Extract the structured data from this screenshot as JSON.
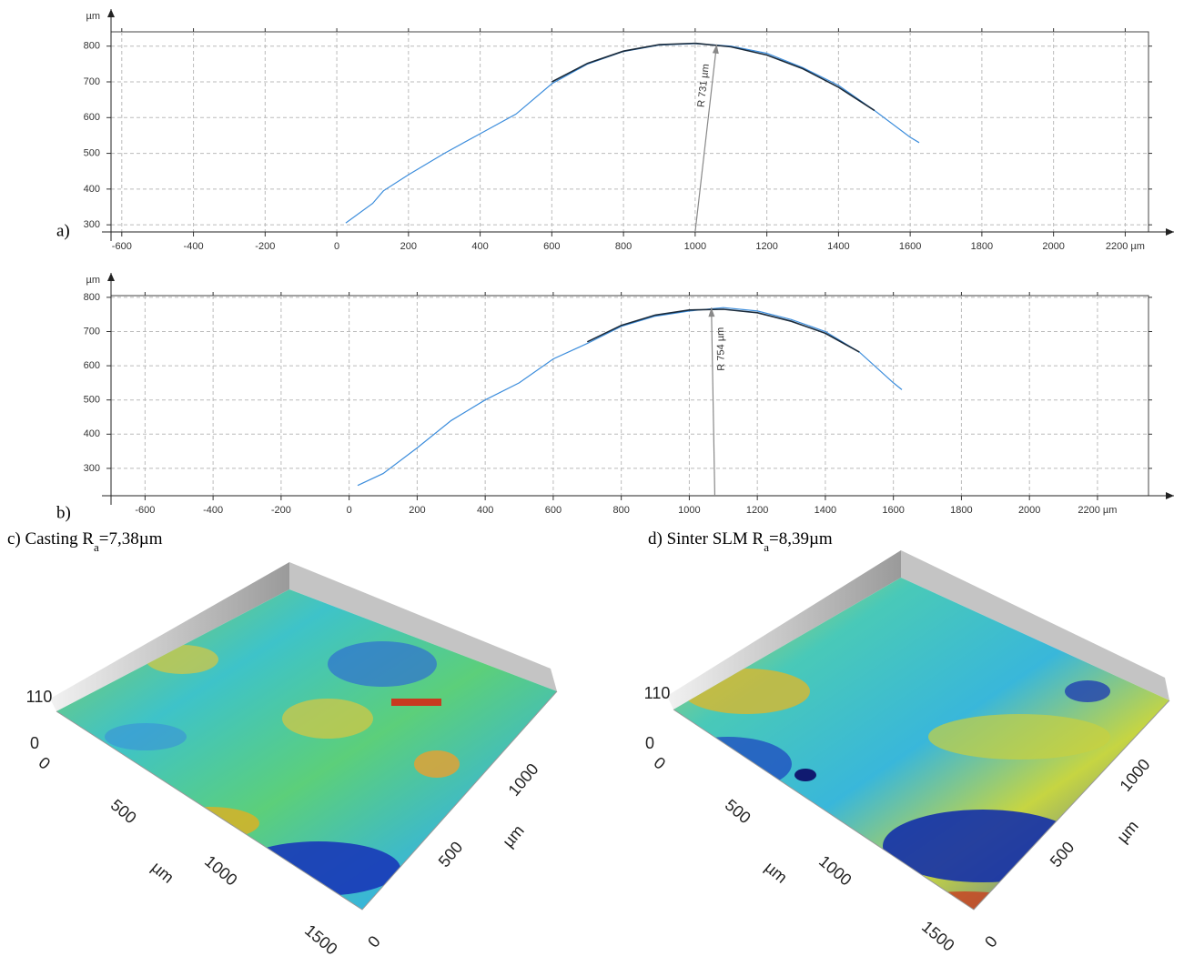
{
  "chart_data": [
    {
      "type": "line",
      "label": "a)",
      "y_label": "µm",
      "xlim": [
        -630,
        2265
      ],
      "ylim": [
        280,
        840
      ],
      "xticks": [
        -600,
        -400,
        -200,
        0,
        200,
        400,
        600,
        800,
        1000,
        1200,
        1400,
        1600,
        1800,
        2000,
        {
          "value": 2200,
          "label": "2200 µm"
        }
      ],
      "yticks": [
        300,
        400,
        500,
        600,
        700,
        800
      ],
      "grid": true,
      "x": [
        25,
        100,
        130,
        200,
        300,
        400,
        500,
        600,
        700,
        800,
        900,
        1000,
        1100,
        1200,
        1300,
        1400,
        1500,
        1600,
        1625
      ],
      "series": [
        {
          "color": "#3c8ddc",
          "values": [
            305,
            360,
            395,
            440,
            500,
            555,
            610,
            695,
            750,
            785,
            803,
            807,
            800,
            780,
            740,
            690,
            620,
            545,
            530
          ]
        },
        {
          "color": "#1a2a3a",
          "values": [
            null,
            null,
            null,
            null,
            null,
            null,
            null,
            700,
            752,
            786,
            804,
            808,
            798,
            775,
            737,
            685,
            620,
            null,
            null
          ]
        }
      ],
      "annotation": {
        "text": "R 731 µm",
        "x": [
          1000,
          1060
        ],
        "y": [
          280,
          805
        ]
      }
    },
    {
      "type": "line",
      "label": "b)",
      "y_label": "µm",
      "xlim": [
        -700,
        2350
      ],
      "ylim": [
        220,
        805
      ],
      "xticks": [
        -600,
        -400,
        -200,
        0,
        200,
        400,
        600,
        800,
        1000,
        1200,
        1400,
        1600,
        1800,
        2000,
        {
          "value": 2200,
          "label": "2200 µm"
        }
      ],
      "yticks": [
        300,
        400,
        500,
        600,
        700,
        800
      ],
      "grid": true,
      "x": [
        25,
        100,
        200,
        300,
        400,
        500,
        600,
        700,
        800,
        900,
        1000,
        1100,
        1200,
        1300,
        1400,
        1500,
        1600,
        1625
      ],
      "series": [
        {
          "color": "#3c8ddc",
          "values": [
            250,
            285,
            360,
            440,
            500,
            550,
            620,
            665,
            715,
            745,
            760,
            770,
            760,
            735,
            700,
            640,
            550,
            530
          ]
        },
        {
          "color": "#1a2a3a",
          "values": [
            null,
            null,
            null,
            null,
            null,
            null,
            null,
            670,
            718,
            748,
            763,
            765,
            755,
            730,
            695,
            640,
            null,
            null
          ]
        }
      ],
      "annotation": {
        "text": "R 754 µm",
        "x": [
          1075,
          1065
        ],
        "y": [
          220,
          770
        ]
      }
    }
  ],
  "panels": [
    {
      "caption": {
        "prefix": "c) Casting R",
        "sub": "a",
        "suffix": "=7,38µm"
      },
      "labels": [
        "110",
        "0",
        "0",
        "500",
        "µm",
        "1000",
        "1500",
        "0",
        "500",
        "µm",
        "1000"
      ]
    },
    {
      "caption": {
        "prefix": "d) Sinter SLM R",
        "sub": "a",
        "suffix": "=8,39µm"
      },
      "labels": [
        "110",
        "0",
        "0",
        "500",
        "µm",
        "1000",
        "1500",
        "0",
        "500",
        "µm",
        "1000"
      ]
    }
  ]
}
